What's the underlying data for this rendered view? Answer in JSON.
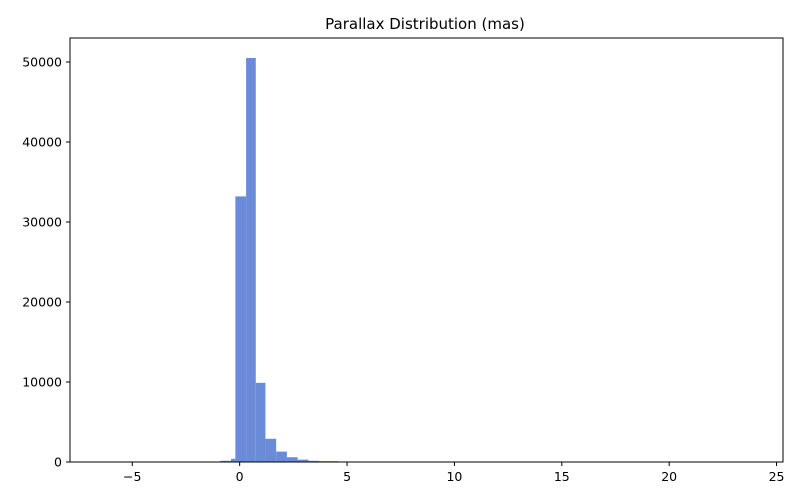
{
  "chart_data": {
    "type": "bar",
    "title": "Parallax Distribution (mas)",
    "xlabel": "",
    "ylabel": "",
    "xlim": [
      -7.9,
      25.3
    ],
    "ylim": [
      0,
      53000
    ],
    "x_ticks": [
      {
        "value": -5,
        "label": "−5"
      },
      {
        "value": 0,
        "label": "0"
      },
      {
        "value": 5,
        "label": "5"
      },
      {
        "value": 10,
        "label": "10"
      },
      {
        "value": 15,
        "label": "15"
      },
      {
        "value": 20,
        "label": "20"
      },
      {
        "value": 25,
        "label": "25"
      }
    ],
    "y_ticks": [
      {
        "value": 0,
        "label": "0"
      },
      {
        "value": 10000,
        "label": "10000"
      },
      {
        "value": 20000,
        "label": "20000"
      },
      {
        "value": 30000,
        "label": "30000"
      },
      {
        "value": 40000,
        "label": "40000"
      },
      {
        "value": 50000,
        "label": "50000"
      }
    ],
    "bar_color": "#6a8bd8",
    "grid": false,
    "bins": [
      {
        "x0": -6.4,
        "x1": -5.9,
        "value": 1
      },
      {
        "x0": -1.4,
        "x1": -0.9,
        "value": 20
      },
      {
        "x0": -0.9,
        "x1": -0.4,
        "value": 150
      },
      {
        "x0": -0.4,
        "x1": -0.2,
        "value": 400
      },
      {
        "x0": -0.2,
        "x1": 0.3,
        "value": 33200
      },
      {
        "x0": 0.3,
        "x1": 0.75,
        "value": 50500
      },
      {
        "x0": 0.75,
        "x1": 1.2,
        "value": 9900
      },
      {
        "x0": 1.2,
        "x1": 1.7,
        "value": 2900
      },
      {
        "x0": 1.7,
        "x1": 2.2,
        "value": 1300
      },
      {
        "x0": 2.2,
        "x1": 2.7,
        "value": 600
      },
      {
        "x0": 2.7,
        "x1": 3.2,
        "value": 300
      },
      {
        "x0": 3.2,
        "x1": 3.7,
        "value": 150
      },
      {
        "x0": 3.7,
        "x1": 4.6,
        "value": 100
      },
      {
        "x0": 4.6,
        "x1": 5.2,
        "value": 40
      },
      {
        "x0": 5.2,
        "x1": 6.5,
        "value": 20
      },
      {
        "x0": 6.5,
        "x1": 9.0,
        "value": 8
      },
      {
        "x0": 9.0,
        "x1": 12.0,
        "value": 4
      },
      {
        "x0": 12.0,
        "x1": 16.0,
        "value": 2
      },
      {
        "x0": 16.0,
        "x1": 24.0,
        "value": 1
      }
    ]
  }
}
